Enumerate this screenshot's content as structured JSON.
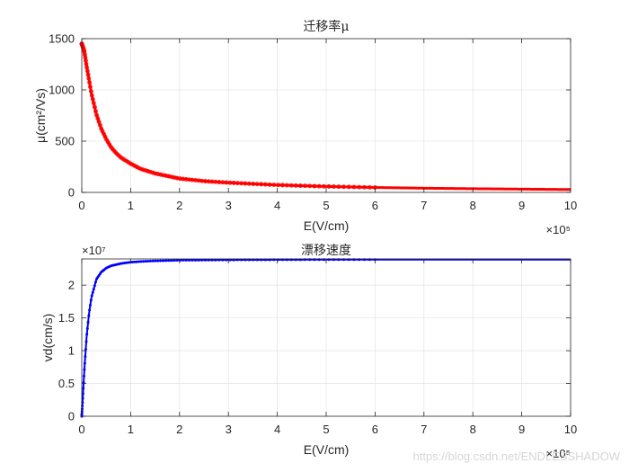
{
  "watermark": "https://blog.csdn.net/ENDLESSHADOW",
  "chart_data": [
    {
      "type": "scatter",
      "title": "迁移率μ",
      "xlabel": "E(V/cm)",
      "ylabel": "μ(cm²/Vs)",
      "x_multiplier": "×10⁵",
      "xlim": [
        0,
        1000000
      ],
      "ylim": [
        0,
        1500
      ],
      "xticks": [
        0,
        100000,
        200000,
        300000,
        400000,
        500000,
        600000,
        700000,
        800000,
        900000,
        1000000
      ],
      "xtick_labels": [
        "0",
        "1",
        "2",
        "3",
        "4",
        "5",
        "6",
        "7",
        "8",
        "9",
        "10"
      ],
      "yticks": [
        0,
        500,
        1000,
        1500
      ],
      "ytick_labels": [
        "0",
        "500",
        "1000",
        "1500"
      ],
      "grid": true,
      "color": "#ff0000",
      "marker": "circle",
      "series": [
        {
          "x": [
            0,
            5000,
            10000,
            20000,
            30000,
            40000,
            50000,
            60000,
            70000,
            80000,
            100000,
            120000,
            150000,
            200000,
            250000,
            300000,
            400000,
            500000,
            600000,
            700000,
            800000,
            900000,
            1000000
          ],
          "values": [
            1450,
            1380,
            1230,
            960,
            760,
            620,
            520,
            440,
            385,
            340,
            280,
            230,
            185,
            135,
            110,
            95,
            72,
            58,
            48,
            41,
            36,
            32,
            28
          ]
        }
      ]
    },
    {
      "type": "line",
      "title": "漂移速度",
      "xlabel": "E(V/cm)",
      "ylabel": "vd(cm/s)",
      "x_multiplier": "×10⁵",
      "y_multiplier": "×10⁷",
      "xlim": [
        0,
        1000000
      ],
      "ylim": [
        0,
        24000000
      ],
      "xticks": [
        0,
        100000,
        200000,
        300000,
        400000,
        500000,
        600000,
        700000,
        800000,
        900000,
        1000000
      ],
      "xtick_labels": [
        "0",
        "1",
        "2",
        "3",
        "4",
        "5",
        "6",
        "7",
        "8",
        "9",
        "10"
      ],
      "yticks": [
        0,
        5000000,
        10000000,
        15000000,
        20000000
      ],
      "ytick_labels": [
        "0",
        "0.5",
        "1",
        "1.5",
        "2"
      ],
      "grid": true,
      "color": "#0000ff",
      "marker": "dot",
      "series": [
        {
          "x": [
            0,
            5000,
            10000,
            15000,
            20000,
            30000,
            40000,
            50000,
            60000,
            80000,
            100000,
            120000,
            150000,
            200000,
            300000,
            500000,
            700000,
            1000000
          ],
          "values": [
            0,
            6800000,
            12200000,
            15800000,
            18200000,
            20900000,
            22000000,
            22600000,
            22950000,
            23300000,
            23500000,
            23600000,
            23700000,
            23800000,
            23850000,
            23900000,
            23900000,
            23900000
          ]
        }
      ]
    }
  ]
}
